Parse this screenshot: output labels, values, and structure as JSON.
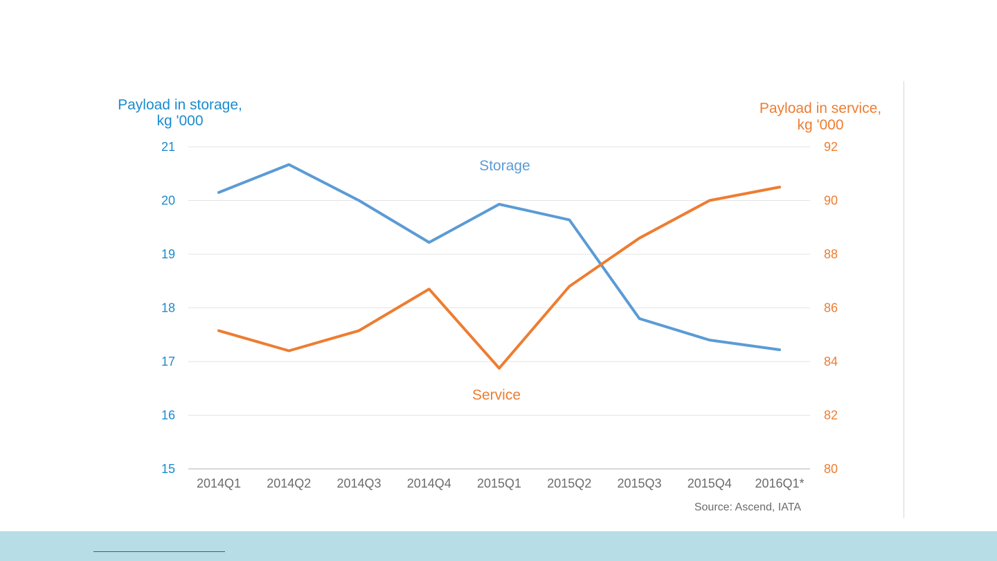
{
  "chart_data": {
    "type": "line",
    "categories": [
      "2014Q1",
      "2014Q2",
      "2014Q3",
      "2014Q4",
      "2015Q1",
      "2015Q2",
      "2015Q3",
      "2015Q4",
      "2016Q1*"
    ],
    "series": [
      {
        "name": "Storage",
        "axis": "left",
        "color": "#5b9bd5",
        "values": [
          20.15,
          20.67,
          20.0,
          19.22,
          19.93,
          19.64,
          17.8,
          17.4,
          17.22
        ]
      },
      {
        "name": "Service",
        "axis": "right",
        "color": "#ed7d31",
        "values": [
          85.15,
          84.4,
          85.15,
          86.7,
          83.75,
          86.8,
          88.6,
          90.0,
          90.5
        ]
      }
    ],
    "y_left": {
      "label_lines": [
        "Payload  in storage,",
        "kg '000"
      ],
      "ticks": [
        21,
        20,
        19,
        18,
        17,
        16,
        15
      ],
      "ylim": [
        15,
        21
      ],
      "color": "#1a8ccd"
    },
    "y_right": {
      "label_lines": [
        "Payload  in service,",
        "kg '000"
      ],
      "ticks": [
        92,
        90,
        88,
        86,
        84,
        82,
        80
      ],
      "ylim": [
        80,
        92
      ],
      "color": "#ed7d31"
    },
    "x_tick_color": "#6b6b6b",
    "grid": true,
    "source": "Source: Ascend, IATA"
  }
}
